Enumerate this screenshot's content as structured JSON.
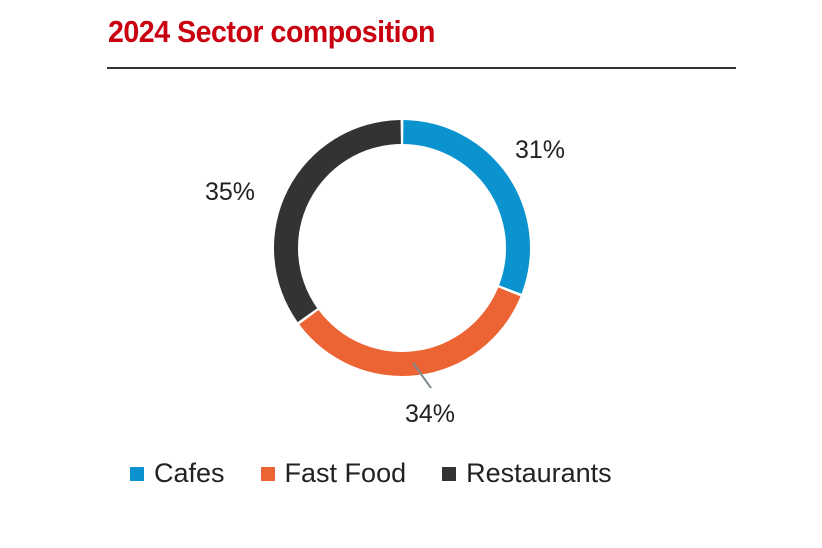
{
  "chart_data": {
    "type": "pie",
    "variant": "donut",
    "title": "2024 Sector composition",
    "categories": [
      "Cafes",
      "Fast Food",
      "Restaurants"
    ],
    "values": [
      31,
      34,
      35
    ],
    "labels": [
      "31%",
      "34%",
      "35%"
    ],
    "colors": [
      "#0a93cf",
      "#ec6334",
      "#333333"
    ],
    "legend_position": "bottom"
  }
}
